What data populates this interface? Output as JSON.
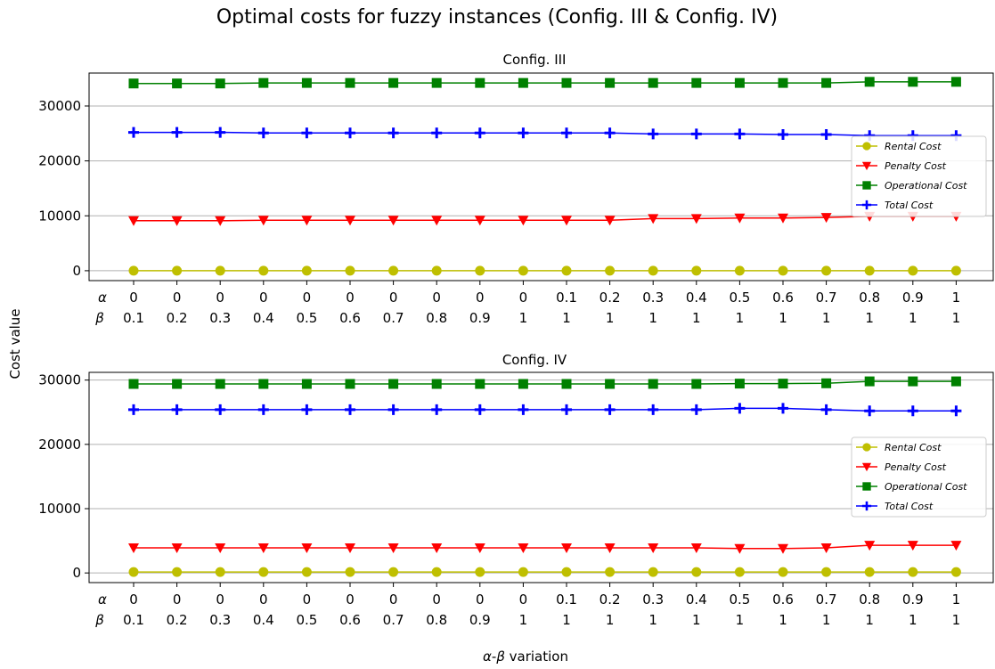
{
  "chart_data": {
    "suptitle": "Optimal costs for fuzzy instances (Config. III & Config. IV)",
    "ylabel": "Cost value",
    "xlabel": "α-β variation",
    "xlabel_parts": {
      "alpha": "α",
      "dash": "-",
      "beta": "β",
      "rest": " variation"
    },
    "tick_row_labels": [
      "α",
      "β"
    ],
    "alpha_ticks": [
      "0",
      "0",
      "0",
      "0",
      "0",
      "0",
      "0",
      "0",
      "0",
      "0",
      "0.1",
      "0.2",
      "0.3",
      "0.4",
      "0.5",
      "0.6",
      "0.7",
      "0.8",
      "0.9",
      "1"
    ],
    "beta_ticks": [
      "0.1",
      "0.2",
      "0.3",
      "0.4",
      "0.5",
      "0.6",
      "0.7",
      "0.8",
      "0.9",
      "1",
      "1",
      "1",
      "1",
      "1",
      "1",
      "1",
      "1",
      "1",
      "1",
      "1"
    ],
    "colors": {
      "rental": "#bfbf00",
      "penalty": "#ff0000",
      "operational": "#008000",
      "total": "#0000ff",
      "grid": "#b0b0b0"
    },
    "legend_position": "right, mid-height",
    "panels": [
      {
        "type": "line",
        "title": "Config. III",
        "ylim": [
          -1800,
          36000
        ],
        "yticks": [
          0,
          10000,
          20000,
          30000
        ],
        "grid": "horizontal",
        "series": [
          {
            "name": "Rental Cost",
            "marker": "circle",
            "color_key": "rental",
            "values": [
              0,
              0,
              0,
              0,
              0,
              0,
              0,
              0,
              0,
              0,
              0,
              0,
              0,
              0,
              0,
              0,
              0,
              0,
              0,
              0
            ]
          },
          {
            "name": "Penalty Cost",
            "marker": "triangle-down",
            "color_key": "penalty",
            "values": [
              9100,
              9100,
              9100,
              9200,
              9200,
              9200,
              9200,
              9200,
              9200,
              9200,
              9200,
              9200,
              9500,
              9500,
              9600,
              9600,
              9700,
              9900,
              9900,
              9900
            ]
          },
          {
            "name": "Operational Cost",
            "marker": "square",
            "color_key": "operational",
            "values": [
              34100,
              34100,
              34100,
              34200,
              34200,
              34200,
              34200,
              34200,
              34200,
              34200,
              34200,
              34200,
              34200,
              34200,
              34200,
              34200,
              34200,
              34400,
              34400,
              34400
            ]
          },
          {
            "name": "Total Cost",
            "marker": "plus",
            "color_key": "total",
            "values": [
              25200,
              25200,
              25200,
              25100,
              25100,
              25100,
              25100,
              25100,
              25100,
              25100,
              25100,
              25100,
              24900,
              24900,
              24900,
              24800,
              24800,
              24600,
              24600,
              24600
            ]
          }
        ]
      },
      {
        "type": "line",
        "title": "Config. IV",
        "ylim": [
          -1500,
          31200
        ],
        "yticks": [
          0,
          10000,
          20000,
          30000
        ],
        "grid": "horizontal",
        "series": [
          {
            "name": "Rental Cost",
            "marker": "circle",
            "color_key": "rental",
            "values": [
              150,
              150,
              150,
              150,
              150,
              150,
              150,
              150,
              150,
              150,
              150,
              150,
              150,
              150,
              150,
              150,
              150,
              150,
              150,
              150
            ]
          },
          {
            "name": "Penalty Cost",
            "marker": "triangle-down",
            "color_key": "penalty",
            "values": [
              3900,
              3900,
              3900,
              3900,
              3900,
              3900,
              3900,
              3900,
              3900,
              3900,
              3900,
              3900,
              3900,
              3900,
              3800,
              3800,
              3900,
              4300,
              4300,
              4300
            ]
          },
          {
            "name": "Operational Cost",
            "marker": "square",
            "color_key": "operational",
            "values": [
              29400,
              29400,
              29400,
              29400,
              29400,
              29400,
              29400,
              29400,
              29400,
              29400,
              29400,
              29400,
              29400,
              29400,
              29450,
              29450,
              29500,
              29800,
              29800,
              29800
            ]
          },
          {
            "name": "Total Cost",
            "marker": "plus",
            "color_key": "total",
            "values": [
              25400,
              25400,
              25400,
              25400,
              25400,
              25400,
              25400,
              25400,
              25400,
              25400,
              25400,
              25400,
              25400,
              25400,
              25600,
              25600,
              25400,
              25200,
              25200,
              25200
            ]
          }
        ]
      }
    ]
  }
}
